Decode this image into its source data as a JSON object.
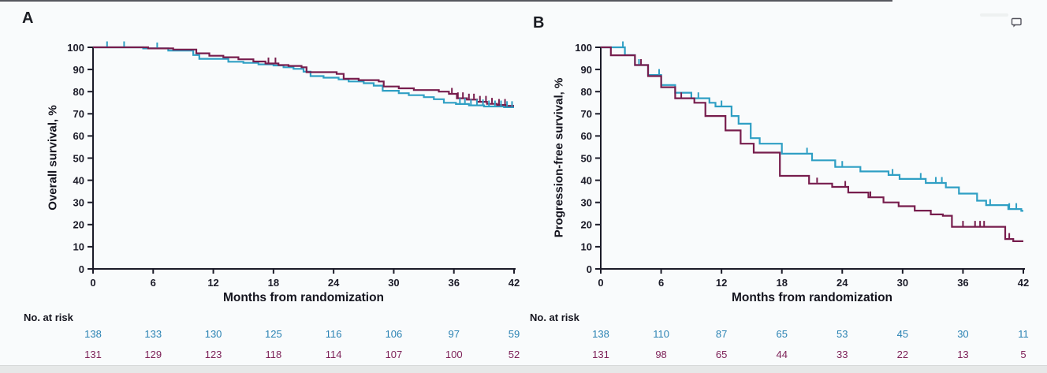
{
  "page": {
    "panel_a_letter": "A",
    "panel_b_letter": "B",
    "comment_icon": "comment-bubble",
    "colors": {
      "axis": "#1b1b28",
      "arm1_line": "#2f9fc4",
      "arm2_line": "#771d4d",
      "arm1_text": "#2a82b3",
      "arm2_text": "#7d2158",
      "background": "#f9fbfc"
    }
  },
  "chart_data": [
    {
      "type": "line",
      "subtype": "kaplan-meier-step",
      "panel": "A",
      "ylabel": "Overall survival, %",
      "xlabel": "Months from randomization",
      "xlim": [
        0,
        42
      ],
      "ylim": [
        0,
        100
      ],
      "xticks": [
        0,
        6,
        12,
        18,
        24,
        30,
        36,
        42
      ],
      "yticks": [
        0,
        10,
        20,
        30,
        40,
        50,
        60,
        70,
        80,
        90,
        100
      ],
      "grid": false,
      "legend": "none",
      "series": [
        {
          "name": "arm-1",
          "color": "#2f9fc4",
          "steps": [
            [
              0,
              100
            ],
            [
              5,
              99.5
            ],
            [
              7.5,
              98.5
            ],
            [
              10,
              96.5
            ],
            [
              10.6,
              94.8
            ],
            [
              13.5,
              93.5
            ],
            [
              15,
              93
            ],
            [
              16.5,
              92.3
            ],
            [
              18,
              91.8
            ],
            [
              19,
              91
            ],
            [
              20,
              90.3
            ],
            [
              21,
              89
            ],
            [
              21.7,
              87
            ],
            [
              23,
              86.3
            ],
            [
              24.5,
              85.5
            ],
            [
              25.5,
              84.6
            ],
            [
              27,
              83.8
            ],
            [
              28,
              82.7
            ],
            [
              28.9,
              80.4
            ],
            [
              30.5,
              79.3
            ],
            [
              31.5,
              78.4
            ],
            [
              33,
              77.5
            ],
            [
              34,
              76.6
            ],
            [
              35,
              75
            ],
            [
              36.2,
              74.4
            ],
            [
              37.5,
              73.8
            ],
            [
              39,
              73.3
            ],
            [
              41,
              73
            ],
            [
              42,
              73
            ]
          ],
          "censor_x": [
            1.4,
            3.1,
            6.4,
            36.6,
            37.1,
            37.7,
            38.3,
            38.9,
            39.5,
            40.1,
            40.7,
            41.3,
            41.8
          ]
        },
        {
          "name": "arm-2",
          "color": "#771d4d",
          "steps": [
            [
              0,
              100
            ],
            [
              5.5,
              99.5
            ],
            [
              8,
              99
            ],
            [
              10.3,
              97.3
            ],
            [
              11.6,
              96.2
            ],
            [
              13,
              95.5
            ],
            [
              14.5,
              94.6
            ],
            [
              16,
              93.6
            ],
            [
              17.2,
              92.7
            ],
            [
              18.5,
              92
            ],
            [
              19.5,
              91.6
            ],
            [
              20.8,
              91
            ],
            [
              21.3,
              88.8
            ],
            [
              24.3,
              88
            ],
            [
              25,
              85.8
            ],
            [
              26.5,
              85.2
            ],
            [
              28.5,
              84.6
            ],
            [
              29,
              82.3
            ],
            [
              30.5,
              81.5
            ],
            [
              32,
              80.7
            ],
            [
              34.5,
              80
            ],
            [
              35.5,
              79
            ],
            [
              36.3,
              77
            ],
            [
              37.3,
              76.4
            ],
            [
              38.3,
              75.4
            ],
            [
              39.3,
              74.5
            ],
            [
              40.3,
              74
            ],
            [
              41.2,
              73.6
            ],
            [
              42,
              73.6
            ]
          ],
          "censor_x": [
            17.5,
            18.2,
            35.8,
            36.4,
            36.9,
            37.5,
            38.0,
            38.6,
            39.2,
            39.8,
            40.5,
            41.1
          ]
        }
      ],
      "risk_table": {
        "label": "No. at risk",
        "months": [
          0,
          6,
          12,
          18,
          24,
          30,
          36,
          42
        ],
        "rows": [
          {
            "name": "arm-1",
            "color": "#2a82b3",
            "values": [
              138,
              133,
              130,
              125,
              116,
              106,
              97,
              59
            ]
          },
          {
            "name": "arm-2",
            "color": "#7d2158",
            "values": [
              131,
              129,
              123,
              118,
              114,
              107,
              100,
              52
            ]
          }
        ]
      }
    },
    {
      "type": "line",
      "subtype": "kaplan-meier-step",
      "panel": "B",
      "ylabel": "Progression-free survival, %",
      "xlabel": "Months from randomization",
      "xlim": [
        0,
        42
      ],
      "ylim": [
        0,
        100
      ],
      "xticks": [
        0,
        6,
        12,
        18,
        24,
        30,
        36,
        42
      ],
      "yticks": [
        0,
        10,
        20,
        30,
        40,
        50,
        60,
        70,
        80,
        90,
        100
      ],
      "grid": false,
      "legend": "none",
      "series": [
        {
          "name": "arm-1",
          "color": "#2f9fc4",
          "steps": [
            [
              0,
              100
            ],
            [
              2.4,
              96.5
            ],
            [
              3.4,
              92
            ],
            [
              4.7,
              87.5
            ],
            [
              6,
              83
            ],
            [
              7.4,
              79.5
            ],
            [
              9,
              77
            ],
            [
              10.8,
              75
            ],
            [
              11.4,
              73.3
            ],
            [
              13,
              69
            ],
            [
              13.7,
              65.5
            ],
            [
              14.9,
              59
            ],
            [
              15.8,
              56.5
            ],
            [
              18,
              52
            ],
            [
              21,
              49
            ],
            [
              23.3,
              46
            ],
            [
              25.8,
              44
            ],
            [
              28.6,
              42.4
            ],
            [
              29.7,
              40.6
            ],
            [
              32.3,
              38.8
            ],
            [
              34.3,
              36.8
            ],
            [
              35.6,
              34
            ],
            [
              37.4,
              30.8
            ],
            [
              38.3,
              28.8
            ],
            [
              40.5,
              27
            ],
            [
              41.8,
              26.2
            ],
            [
              42,
              26.2
            ]
          ],
          "censor_x": [
            2.2,
            3.8,
            5.8,
            9.7,
            12,
            20.5,
            23.3,
            24,
            29,
            31.8,
            33.3,
            33.9,
            38.7,
            40.6,
            41.3
          ]
        },
        {
          "name": "arm-2",
          "color": "#771d4d",
          "steps": [
            [
              0,
              100
            ],
            [
              1,
              96.4
            ],
            [
              3.4,
              92
            ],
            [
              4.7,
              87
            ],
            [
              6,
              82
            ],
            [
              7.4,
              77
            ],
            [
              9.3,
              75
            ],
            [
              10.4,
              69
            ],
            [
              12.4,
              62.5
            ],
            [
              13.9,
              56.5
            ],
            [
              15.2,
              52.5
            ],
            [
              17.8,
              42
            ],
            [
              20.7,
              38.5
            ],
            [
              23,
              37
            ],
            [
              24.6,
              34.5
            ],
            [
              26.6,
              32.3
            ],
            [
              28.1,
              30
            ],
            [
              29.6,
              28.3
            ],
            [
              31.2,
              26.3
            ],
            [
              32.8,
              24.6
            ],
            [
              34,
              24
            ],
            [
              34.9,
              19
            ],
            [
              40.2,
              13.5
            ],
            [
              41,
              12.5
            ],
            [
              42,
              12.5
            ]
          ],
          "censor_x": [
            4,
            8,
            21.5,
            24.3,
            26.8,
            36,
            37.2,
            37.7,
            38.1,
            40.6
          ]
        }
      ],
      "risk_table": {
        "label": "No. at risk",
        "months": [
          0,
          6,
          12,
          18,
          24,
          30,
          36,
          42
        ],
        "rows": [
          {
            "name": "arm-1",
            "color": "#2a82b3",
            "values": [
              138,
              110,
              87,
              65,
              53,
              45,
              30,
              11
            ]
          },
          {
            "name": "arm-2",
            "color": "#7d2158",
            "values": [
              131,
              98,
              65,
              44,
              33,
              22,
              13,
              5
            ]
          }
        ]
      }
    }
  ]
}
